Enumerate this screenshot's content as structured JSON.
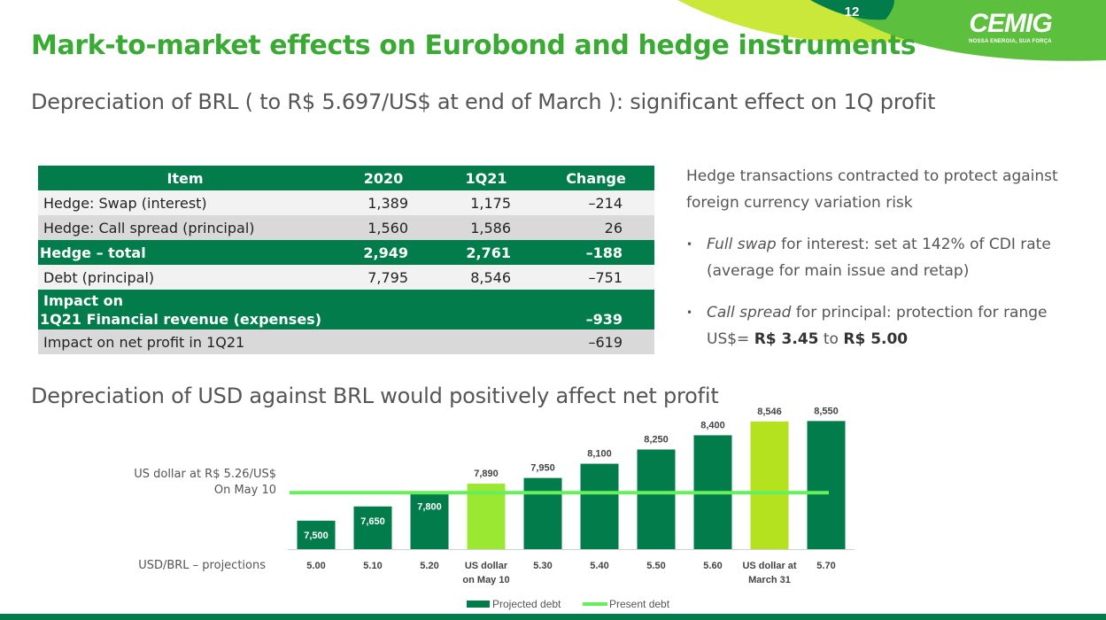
{
  "header": {
    "page_number": "12",
    "logo": {
      "word": "CEMIG",
      "tagline": "NOSSA ENERGIA, SUA FORÇA"
    },
    "title": "Mark-to-market effects on Eurobond and hedge instruments",
    "subtitle": "Depreciation of BRL ( to R$ 5.697/US$ at end of March ): significant effect on 1Q profit",
    "section2": "Depreciation of USD against BRL would positively affect net profit"
  },
  "table": {
    "headers": [
      "Item",
      "2020",
      "1Q21",
      "Change"
    ],
    "rows": [
      {
        "item": "Hedge: Swap (interest)",
        "y2020": "1,389",
        "q121": "1,175",
        "change": "–214"
      },
      {
        "item": "Hedge: Call spread (principal)",
        "y2020": "1,560",
        "q121": "1,586",
        "change": "26"
      },
      {
        "item": "Hedge – total",
        "y2020": "2,949",
        "q121": "2,761",
        "change": "–188"
      },
      {
        "item": "Debt (principal)",
        "y2020": "7,795",
        "q121": "8,546",
        "change": "–751"
      },
      {
        "item_line1": "Impact on",
        "item_line2": "1Q21 Financial revenue (expenses)",
        "y2020": "",
        "q121": "",
        "change": "–939"
      },
      {
        "item": "Impact on net profit in 1Q21",
        "y2020": "",
        "q121": "",
        "change": "–619"
      }
    ]
  },
  "hedge_text": {
    "intro": "Hedge transactions contracted to protect against foreign currency variation risk",
    "bullet1_italic": "Full swap",
    "bullet1_rest": " for interest: set at 142% of CDI rate (average for main issue and retap)",
    "bullet2_italic": "Call spread",
    "bullet2_mid": " for principal: protection for range US$= ",
    "bullet2_b1": "R$ 3.45",
    "bullet2_to": " to ",
    "bullet2_b2": "R$ 5.00"
  },
  "chart_notes": {
    "line1": "US dollar at R$ 5.26/US$",
    "line2": "On May 10",
    "xaxis_label": "USD/BRL – projections"
  },
  "colors": {
    "dark_green": "#017c4a",
    "lime": "#9ad632",
    "lime_bright": "#8fe53a",
    "line_green": "#66ef5c",
    "title_green": "#3aaa35"
  },
  "chart_data": {
    "type": "bar",
    "categories": [
      "5.00",
      "5.10",
      "5.20",
      "US dollar on May 10",
      "5.30",
      "5.40",
      "5.50",
      "5.60",
      "US dollar at March 31",
      "5.70"
    ],
    "category_lines": [
      [
        "5.00"
      ],
      [
        "5.10"
      ],
      [
        "5.20"
      ],
      [
        "US dollar",
        "on May 10"
      ],
      [
        "5.30"
      ],
      [
        "5.40"
      ],
      [
        "5.50"
      ],
      [
        "5.60"
      ],
      [
        "US dollar at",
        "March 31"
      ],
      [
        "5.70"
      ]
    ],
    "series": [
      {
        "name": "Projected debt",
        "values": [
          7500,
          7650,
          7800,
          7890,
          7950,
          8100,
          8250,
          8400,
          8546,
          8550
        ]
      },
      {
        "name": "Present debt",
        "values": [
          7795,
          7795,
          7795,
          7795,
          7795,
          7795,
          7795,
          7795,
          7795,
          7795
        ]
      }
    ],
    "value_labels": [
      "7,500",
      "7,650",
      "7,800",
      "7,890",
      "7,950",
      "8,100",
      "8,250",
      "8,400",
      "8,546",
      "8,550"
    ],
    "bar_colors": [
      "#017c4a",
      "#017c4a",
      "#017c4a",
      "#9ae832",
      "#017c4a",
      "#017c4a",
      "#017c4a",
      "#017c4a",
      "#b5e21f",
      "#017c4a"
    ],
    "label_inside": [
      true,
      true,
      true,
      false,
      false,
      false,
      false,
      false,
      false,
      false
    ],
    "legend": [
      "Projected debt",
      "Present debt"
    ],
    "legend_position": "bottom",
    "ylim": [
      7200,
      8600
    ],
    "grid": false
  }
}
